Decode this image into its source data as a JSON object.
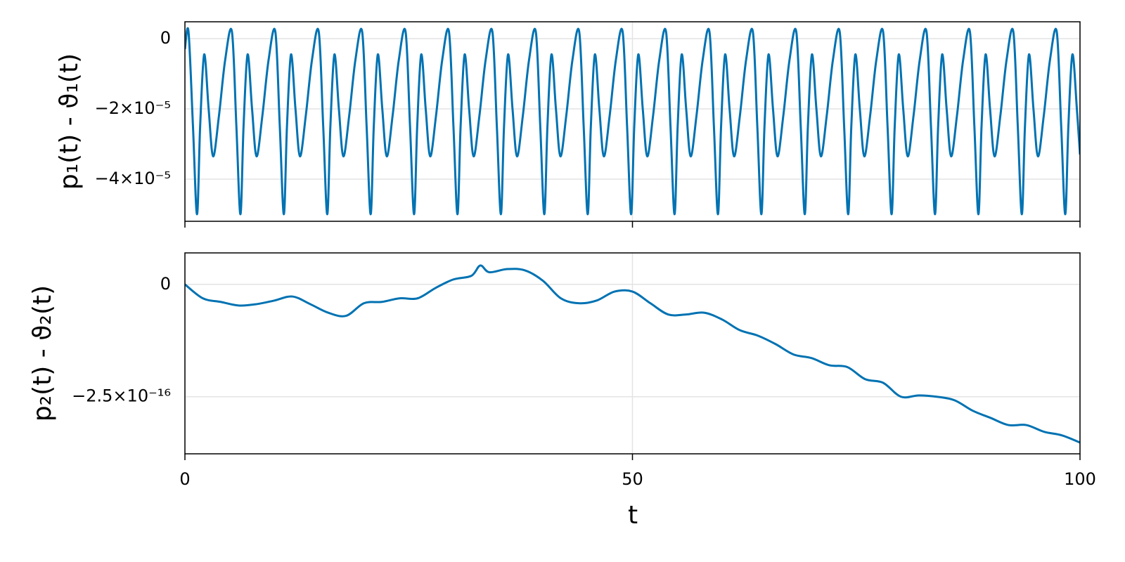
{
  "chart_data": [
    {
      "type": "line",
      "ylabel": "p₁(t) - ϑ₁(t)",
      "xlim": [
        0,
        100
      ],
      "xticks": [
        0,
        50,
        100
      ],
      "ylim": [
        -5.2e-05,
        4.8e-06
      ],
      "yticks": [
        {
          "value": -4e-05,
          "label": "−4×10⁻⁵"
        },
        {
          "value": -2e-05,
          "label": "−2×10⁻⁵"
        },
        0
      ],
      "grid": true,
      "series": [
        {
          "color": "#0072b2",
          "x": [
            0,
            0.4,
            0.9,
            1.35,
            1.7,
            2.15,
            2.65,
            3.15,
            3.8,
            4.5,
            5.25,
            5.75,
            6.2,
            6.55,
            7,
            7.5,
            8,
            8.65,
            9.35,
            10.1,
            10.6,
            11.05,
            11.4,
            11.85,
            12.35,
            12.85,
            13.5,
            14.2,
            14.95,
            15.45,
            15.9,
            16.25,
            16.7,
            17.2,
            17.7,
            18.35,
            19.05,
            19.8,
            20.3,
            20.75,
            21.1,
            21.55,
            22.05,
            22.55,
            23.2,
            23.9,
            24.65,
            25.15,
            25.6,
            25.95,
            26.4,
            26.9,
            27.4,
            28.05,
            28.75,
            29.5,
            30,
            30.45,
            30.8,
            31.25,
            31.75,
            32.25,
            32.9,
            33.6,
            34.35,
            34.85,
            35.3,
            35.65,
            36.1,
            36.6,
            37.1,
            37.75,
            38.45,
            39.2,
            39.7,
            40.15,
            40.5,
            40.95,
            41.45,
            41.95,
            42.6,
            43.3,
            44.05,
            44.55,
            45,
            45.35,
            45.8,
            46.3,
            46.8,
            47.45,
            48.15,
            48.9,
            49.4,
            49.85,
            50.2,
            50.65,
            51.15,
            51.65,
            52.3,
            53,
            53.75,
            54.25,
            54.7,
            55.05,
            55.5,
            56,
            56.5,
            57.15,
            57.85,
            58.6,
            59.1,
            59.55,
            59.9,
            60.35,
            60.85,
            61.35,
            62,
            62.7,
            63.45,
            63.95,
            64.4,
            64.75,
            65.2,
            65.7,
            66.2,
            66.85,
            67.55,
            68.3,
            68.8,
            69.25,
            69.6,
            70.05,
            70.55,
            71.05,
            71.7,
            72.4,
            73.15,
            73.65,
            74.1,
            74.45,
            74.9,
            75.4,
            75.9,
            76.55,
            77.25,
            78,
            78.5,
            78.95,
            79.3,
            79.75,
            80.25,
            80.75,
            81.4,
            82.1,
            82.85,
            83.35,
            83.8,
            84.15,
            84.6,
            85.1,
            85.6,
            86.25,
            86.95,
            87.7,
            88.2,
            88.65,
            89,
            89.45,
            89.95,
            90.45,
            91.1,
            91.8,
            92.55,
            93.05,
            93.5,
            93.85,
            94.3,
            94.8,
            95.3,
            95.95,
            96.65,
            97.4,
            97.9,
            98.35,
            98.7,
            99.15,
            99.65,
            100
          ],
          "values": [
            -3e-06,
            2e-06,
            -2.5e-05,
            -5e-05,
            -2.5e-05,
            -4.5e-06,
            -2e-05,
            -3.35e-05,
            -2.2e-05,
            -6e-06,
            2e-06,
            -2.5e-05,
            -5e-05,
            -2.5e-05,
            -4.5e-06,
            -2e-05,
            -3.35e-05,
            -2.2e-05,
            -6e-06,
            2e-06,
            -2.5e-05,
            -5e-05,
            -2.5e-05,
            -4.5e-06,
            -2e-05,
            -3.35e-05,
            -2.2e-05,
            -6e-06,
            2e-06,
            -2.5e-05,
            -5e-05,
            -2.5e-05,
            -4.5e-06,
            -2e-05,
            -3.35e-05,
            -2.2e-05,
            -6e-06,
            2e-06,
            -2.5e-05,
            -5e-05,
            -2.5e-05,
            -4.5e-06,
            -2e-05,
            -3.35e-05,
            -2.2e-05,
            -6e-06,
            2e-06,
            -2.5e-05,
            -5e-05,
            -2.5e-05,
            -4.5e-06,
            -2e-05,
            -3.35e-05,
            -2.2e-05,
            -6e-06,
            2e-06,
            -2.5e-05,
            -5e-05,
            -2.5e-05,
            -4.5e-06,
            -2e-05,
            -3.35e-05,
            -2.2e-05,
            -6e-06,
            2e-06,
            -2.5e-05,
            -5e-05,
            -2.5e-05,
            -4.5e-06,
            -2e-05,
            -3.35e-05,
            -2.2e-05,
            -6e-06,
            2e-06,
            -2.5e-05,
            -5e-05,
            -2.5e-05,
            -4.5e-06,
            -2e-05,
            -3.35e-05,
            -2.2e-05,
            -6e-06,
            2e-06,
            -2.5e-05,
            -5e-05,
            -2.5e-05,
            -4.5e-06,
            -2e-05,
            -3.35e-05,
            -2.2e-05,
            -6e-06,
            2e-06,
            -2.5e-05,
            -5e-05,
            -2.5e-05,
            -4.5e-06,
            -2e-05,
            -3.35e-05,
            -2.2e-05,
            -6e-06,
            2e-06,
            -2.5e-05,
            -5e-05,
            -2.5e-05,
            -4.5e-06,
            -2e-05,
            -3.35e-05,
            -2.2e-05,
            -6e-06,
            2e-06,
            -2.5e-05,
            -5e-05,
            -2.5e-05,
            -4.5e-06,
            -2e-05,
            -3.35e-05,
            -2.2e-05,
            -6e-06,
            2e-06,
            -2.5e-05,
            -5e-05,
            -2.5e-05,
            -4.5e-06,
            -2e-05,
            -3.35e-05,
            -2.2e-05,
            -6e-06,
            2e-06,
            -2.5e-05,
            -5e-05,
            -2.5e-05,
            -4.5e-06,
            -2e-05,
            -3.35e-05,
            -2.2e-05,
            -6e-06,
            2e-06,
            -2.5e-05,
            -5e-05,
            -2.5e-05,
            -4.5e-06,
            -2e-05,
            -3.35e-05,
            -2.2e-05,
            -6e-06,
            2e-06,
            -2.5e-05,
            -5e-05,
            -2.5e-05,
            -4.5e-06,
            -2e-05,
            -3.35e-05,
            -2.2e-05,
            -6e-06,
            2e-06,
            -2.5e-05,
            -5e-05,
            -2.5e-05,
            -4.5e-06,
            -2e-05,
            -3.35e-05,
            -2.2e-05,
            -6e-06,
            2e-06,
            -2.5e-05,
            -5e-05,
            -2.5e-05,
            -4.5e-06,
            -2e-05,
            -3.35e-05,
            -2.2e-05,
            -6e-06,
            2e-06,
            -2.5e-05,
            -5e-05,
            -2.5e-05,
            -4.5e-06,
            -2e-05,
            -3.35e-05,
            -2.2e-05,
            -6e-06,
            2e-06,
            -2.5e-05,
            -5e-05,
            -2.5e-05,
            -4.5e-06,
            -2e-05,
            -3.3e-05
          ]
        }
      ]
    },
    {
      "type": "line",
      "ylabel": "p₂(t) - ϑ₂(t)",
      "xlabel": "t",
      "xlim": [
        0,
        100
      ],
      "xticks": [
        0,
        50,
        100
      ],
      "ylim": [
        -3.77e-16,
        7e-17
      ],
      "yticks": [
        {
          "value": -2.5e-16,
          "label": "−2.5×10⁻¹⁶"
        },
        0
      ],
      "grid": true,
      "series": [
        {
          "color": "#0072b2",
          "x": [
            0,
            2,
            4,
            6,
            8,
            10,
            12,
            14,
            16,
            18,
            20,
            22,
            24,
            26,
            28,
            30,
            32,
            33,
            34,
            36,
            38,
            40,
            42,
            44,
            46,
            48,
            50,
            52,
            54,
            56,
            58,
            60,
            62,
            64,
            66,
            68,
            70,
            72,
            74,
            76,
            78,
            80,
            82,
            84,
            86,
            88,
            90,
            92,
            94,
            96,
            98,
            100
          ],
          "values": [
            0,
            -3.1e-17,
            -3.9e-17,
            -4.7e-17,
            -4.4e-17,
            -3.6e-17,
            -2.7e-17,
            -4.4e-17,
            -6.3e-17,
            -7e-17,
            -4.2e-17,
            -3.9e-17,
            -3.1e-17,
            -3.1e-17,
            -8e-18,
            1.1e-17,
            1.9e-17,
            4.2e-17,
            2.7e-17,
            3.4e-17,
            3.1e-17,
            8e-18,
            -3.1e-17,
            -4.2e-17,
            -3.6e-17,
            -1.6e-17,
            -1.6e-17,
            -4.2e-17,
            -6.7e-17,
            -6.7e-17,
            -6.3e-17,
            -7.8e-17,
            -1.02e-16,
            -1.14e-16,
            -1.33e-16,
            -1.56e-16,
            -1.64e-16,
            -1.8e-16,
            -1.84e-16,
            -2.11e-16,
            -2.19e-16,
            -2.5e-16,
            -2.47e-16,
            -2.5e-16,
            -2.58e-16,
            -2.81e-16,
            -2.97e-16,
            -3.13e-16,
            -3.13e-16,
            -3.28e-16,
            -3.36e-16,
            -3.52e-16
          ]
        }
      ]
    }
  ]
}
